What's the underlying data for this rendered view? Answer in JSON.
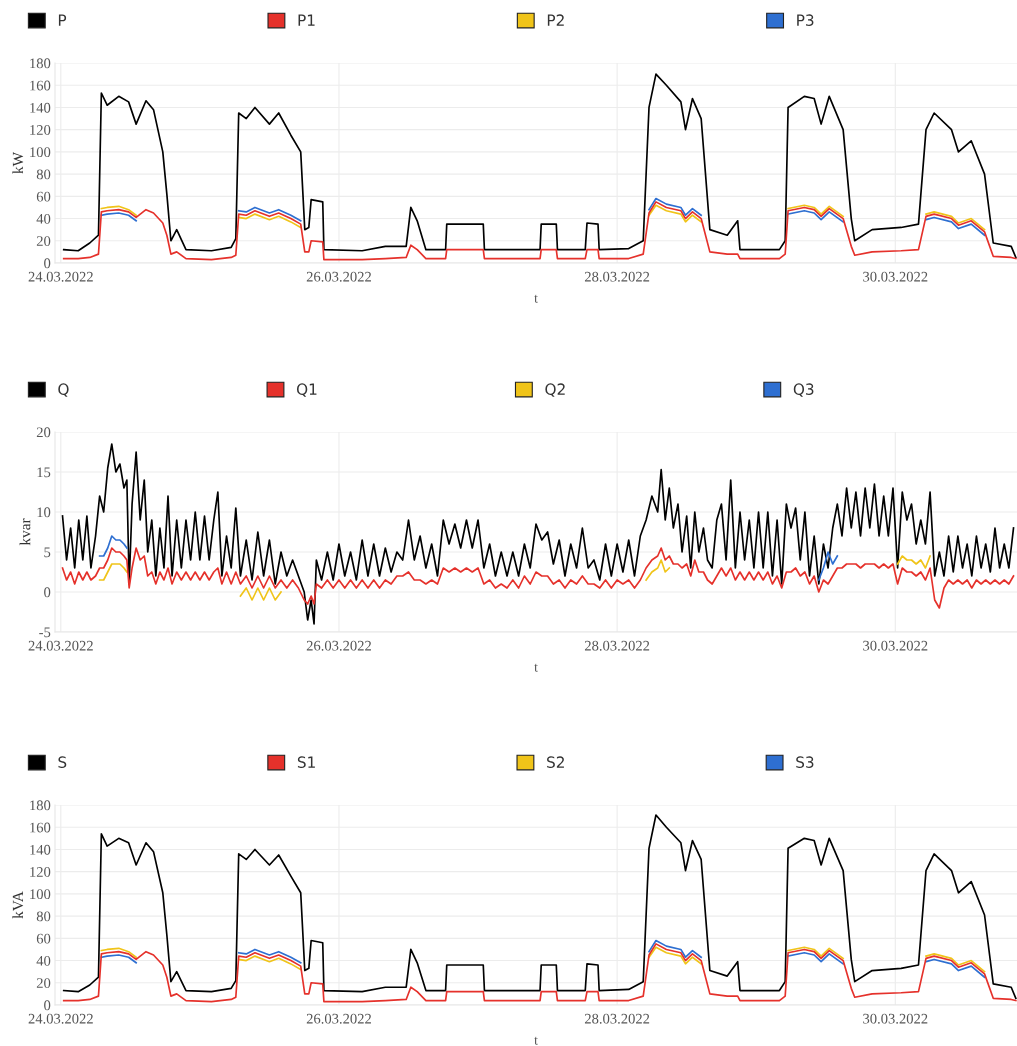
{
  "chart_data": [
    {
      "type": "line",
      "xlabel": "t",
      "ylabel": "kW",
      "legend": "top",
      "grid": true,
      "line_style": "solid",
      "xlim": [
        "2022-03-23T23:00",
        "2022-03-30T21:00"
      ],
      "ylim": [
        0,
        180
      ],
      "yticks": [
        0,
        20,
        40,
        60,
        80,
        100,
        120,
        140,
        160,
        180
      ],
      "xticks": [
        {
          "value": "2022-03-24",
          "label": "24.03.2022"
        },
        {
          "value": "2022-03-26",
          "label": "26.03.2022"
        },
        {
          "value": "2022-03-28",
          "label": "28.03.2022"
        },
        {
          "value": "2022-03-30",
          "label": "30.03.2022"
        }
      ],
      "x": [
        "2022-03-24T00:30",
        "2022-03-24T03:00",
        "2022-03-24T05:00",
        "2022-03-24T06:30",
        "2022-03-24T07:00",
        "2022-03-24T08:00",
        "2022-03-24T10:00",
        "2022-03-24T11:42",
        "2022-03-24T13:00",
        "2022-03-24T14:42",
        "2022-03-24T16:00",
        "2022-03-24T17:36",
        "2022-03-24T18:18",
        "2022-03-24T19:00",
        "2022-03-24T20:00",
        "2022-03-24T21:36",
        "2022-03-25T02:00",
        "2022-03-25T05:24",
        "2022-03-25T06:12",
        "2022-03-25T06:42",
        "2022-03-25T08:00",
        "2022-03-25T09:30",
        "2022-03-25T12:00",
        "2022-03-25T13:36",
        "2022-03-25T15:42",
        "2022-03-25T17:24",
        "2022-03-25T18:06",
        "2022-03-25T18:48",
        "2022-03-25T19:12",
        "2022-03-25T21:12",
        "2022-03-25T21:24",
        "2022-03-26T04:00",
        "2022-03-26T08:00",
        "2022-03-26T11:36",
        "2022-03-26T12:24",
        "2022-03-26T13:30",
        "2022-03-26T15:00",
        "2022-03-26T18:24",
        "2022-03-26T18:36",
        "2022-03-27T00:54",
        "2022-03-27T01:06",
        "2022-03-27T10:42",
        "2022-03-27T10:54",
        "2022-03-27T13:30",
        "2022-03-27T13:42",
        "2022-03-27T18:30",
        "2022-03-27T18:48",
        "2022-03-27T20:42",
        "2022-03-27T20:54",
        "2022-03-28T02:00",
        "2022-03-28T04:30",
        "2022-03-28T05:30",
        "2022-03-28T06:42",
        "2022-03-28T08:30",
        "2022-03-28T11:00",
        "2022-03-28T11:48",
        "2022-03-28T13:00",
        "2022-03-28T14:30",
        "2022-03-28T16:00",
        "2022-03-28T19:00",
        "2022-03-28T20:48",
        "2022-03-28T21:12",
        "2022-03-29T04:00",
        "2022-03-29T05:00",
        "2022-03-29T05:30",
        "2022-03-29T08:18",
        "2022-03-29T10:00",
        "2022-03-29T11:12",
        "2022-03-29T12:36",
        "2022-03-29T15:00",
        "2022-03-29T16:24",
        "2022-03-29T17:00",
        "2022-03-29T20:00",
        "2022-03-30T01:00",
        "2022-03-30T04:00",
        "2022-03-30T05:18",
        "2022-03-30T06:42",
        "2022-03-30T09:42",
        "2022-03-30T10:54",
        "2022-03-30T13:06",
        "2022-03-30T15:24",
        "2022-03-30T16:54",
        "2022-03-30T20:00",
        "2022-03-30T20:48"
      ],
      "series": [
        {
          "name": "P",
          "color": "#000000",
          "values": [
            12,
            11,
            18,
            25,
            153,
            142,
            150,
            145,
            125,
            146,
            138,
            100,
            62,
            20,
            30,
            12,
            11,
            14,
            22,
            135,
            130,
            140,
            125,
            135,
            115,
            100,
            30,
            32,
            57,
            55,
            12,
            11,
            15,
            15,
            50,
            38,
            12,
            12,
            35,
            35,
            12,
            12,
            35,
            35,
            12,
            12,
            36,
            35,
            12,
            13,
            20,
            140,
            170,
            160,
            145,
            120,
            148,
            130,
            30,
            25,
            38,
            12,
            12,
            20,
            140,
            150,
            148,
            125,
            150,
            120,
            40,
            20,
            30,
            32,
            35,
            120,
            135,
            120,
            100,
            110,
            80,
            18,
            15,
            5
          ]
        },
        {
          "name": "P1",
          "color": "#e5312b",
          "values": [
            4,
            4,
            5,
            8,
            46,
            47,
            48,
            46,
            41,
            48,
            45,
            36,
            25,
            8,
            10,
            4,
            3,
            5,
            7,
            44,
            43,
            47,
            42,
            45,
            40,
            35,
            10,
            10,
            20,
            19,
            3,
            3,
            4,
            5,
            16,
            12,
            4,
            4,
            12,
            12,
            4,
            4,
            12,
            12,
            4,
            4,
            12,
            12,
            4,
            4,
            8,
            45,
            55,
            50,
            47,
            40,
            46,
            40,
            10,
            8,
            8,
            4,
            4,
            8,
            47,
            50,
            48,
            42,
            49,
            40,
            15,
            7,
            10,
            11,
            12,
            42,
            44,
            40,
            34,
            38,
            28,
            6,
            5,
            4
          ]
        },
        {
          "name": "P2",
          "color": "#f0c419",
          "values": [
            null,
            null,
            null,
            null,
            49,
            50,
            51,
            48,
            43,
            null,
            null,
            null,
            null,
            null,
            null,
            null,
            null,
            null,
            null,
            41,
            40,
            44,
            39,
            42,
            37,
            32,
            null,
            null,
            null,
            null,
            null,
            null,
            null,
            null,
            null,
            null,
            null,
            null,
            null,
            null,
            null,
            null,
            null,
            null,
            null,
            null,
            null,
            null,
            null,
            null,
            null,
            43,
            52,
            47,
            44,
            37,
            43,
            37,
            null,
            null,
            null,
            null,
            null,
            null,
            49,
            52,
            50,
            44,
            51,
            42,
            null,
            null,
            null,
            null,
            null,
            44,
            46,
            42,
            36,
            40,
            30,
            null,
            null,
            null
          ]
        },
        {
          "name": "P3",
          "color": "#2e6fd1",
          "values": [
            null,
            null,
            null,
            null,
            43,
            44,
            45,
            43,
            38,
            null,
            null,
            null,
            null,
            null,
            null,
            null,
            null,
            null,
            null,
            47,
            46,
            50,
            45,
            48,
            43,
            38,
            null,
            null,
            null,
            null,
            null,
            null,
            null,
            null,
            null,
            null,
            null,
            null,
            null,
            null,
            null,
            null,
            null,
            null,
            null,
            null,
            null,
            null,
            null,
            null,
            null,
            48,
            58,
            53,
            50,
            43,
            49,
            43,
            null,
            null,
            null,
            null,
            null,
            null,
            44,
            47,
            45,
            39,
            46,
            37,
            null,
            null,
            null,
            null,
            null,
            39,
            41,
            37,
            31,
            35,
            25,
            null,
            null,
            null
          ]
        }
      ]
    },
    {
      "type": "line",
      "xlabel": "t",
      "ylabel": "kvar",
      "legend": "top",
      "grid": true,
      "line_style": "solid",
      "xlim": [
        "2022-03-23T23:00",
        "2022-03-30T21:00"
      ],
      "ylim": [
        -5,
        20
      ],
      "yticks": [
        -5,
        0,
        5,
        10,
        15,
        20
      ],
      "xticks": [
        {
          "value": "2022-03-24",
          "label": "24.03.2022"
        },
        {
          "value": "2022-03-26",
          "label": "26.03.2022"
        },
        {
          "value": "2022-03-28",
          "label": "28.03.2022"
        },
        {
          "value": "2022-03-30",
          "label": "30.03.2022"
        }
      ],
      "x": [
        "2022-03-24T00:18",
        "2022-03-24T01:00",
        "2022-03-24T01:42",
        "2022-03-24T02:24",
        "2022-03-24T03:06",
        "2022-03-24T03:48",
        "2022-03-24T04:30",
        "2022-03-24T05:12",
        "2022-03-24T06:00",
        "2022-03-24T06:42",
        "2022-03-24T07:24",
        "2022-03-24T08:06",
        "2022-03-24T08:48",
        "2022-03-24T09:30",
        "2022-03-24T10:12",
        "2022-03-24T10:54",
        "2022-03-24T11:24",
        "2022-03-24T11:48",
        "2022-03-24T12:18",
        "2022-03-24T13:00",
        "2022-03-24T13:42",
        "2022-03-24T14:24",
        "2022-03-24T15:00",
        "2022-03-24T15:42",
        "2022-03-24T16:24",
        "2022-03-24T17:06",
        "2022-03-24T17:48",
        "2022-03-24T18:30",
        "2022-03-24T19:12",
        "2022-03-24T20:00",
        "2022-03-24T20:48",
        "2022-03-24T21:36",
        "2022-03-24T22:24",
        "2022-03-24T23:12",
        "2022-03-25T00:00",
        "2022-03-25T00:48",
        "2022-03-25T01:36",
        "2022-03-25T02:24",
        "2022-03-25T03:06",
        "2022-03-25T03:48",
        "2022-03-25T04:36",
        "2022-03-25T05:24",
        "2022-03-25T06:12",
        "2022-03-25T07:00",
        "2022-03-25T08:00",
        "2022-03-25T09:00",
        "2022-03-25T10:00",
        "2022-03-25T11:00",
        "2022-03-25T12:00",
        "2022-03-25T13:00",
        "2022-03-25T14:00",
        "2022-03-25T15:00",
        "2022-03-25T16:00",
        "2022-03-25T17:00",
        "2022-03-25T18:00",
        "2022-03-25T18:36",
        "2022-03-25T19:12",
        "2022-03-25T19:42",
        "2022-03-25T20:06",
        "2022-03-25T21:00",
        "2022-03-25T22:00",
        "2022-03-25T23:00",
        "2022-03-26T00:00",
        "2022-03-26T01:00",
        "2022-03-26T02:00",
        "2022-03-26T03:00",
        "2022-03-26T04:00",
        "2022-03-26T05:00",
        "2022-03-26T06:00",
        "2022-03-26T07:00",
        "2022-03-26T08:00",
        "2022-03-26T09:00",
        "2022-03-26T10:00",
        "2022-03-26T11:00",
        "2022-03-26T12:00",
        "2022-03-26T13:00",
        "2022-03-26T14:00",
        "2022-03-26T15:00",
        "2022-03-26T16:00",
        "2022-03-26T17:00",
        "2022-03-26T18:00",
        "2022-03-26T19:00",
        "2022-03-26T20:00",
        "2022-03-26T21:00",
        "2022-03-26T22:00",
        "2022-03-26T23:00",
        "2022-03-27T00:00",
        "2022-03-27T01:00",
        "2022-03-27T02:00",
        "2022-03-27T03:00",
        "2022-03-27T04:00",
        "2022-03-27T05:00",
        "2022-03-27T06:00",
        "2022-03-27T07:00",
        "2022-03-27T08:00",
        "2022-03-27T09:00",
        "2022-03-27T10:00",
        "2022-03-27T11:00",
        "2022-03-27T12:00",
        "2022-03-27T13:00",
        "2022-03-27T14:00",
        "2022-03-27T15:00",
        "2022-03-27T16:00",
        "2022-03-27T17:00",
        "2022-03-27T18:00",
        "2022-03-27T19:00",
        "2022-03-27T20:00",
        "2022-03-27T21:00",
        "2022-03-27T22:00",
        "2022-03-27T23:00",
        "2022-03-28T00:00",
        "2022-03-28T01:00",
        "2022-03-28T02:00",
        "2022-03-28T03:00",
        "2022-03-28T04:00",
        "2022-03-28T05:00",
        "2022-03-28T06:00",
        "2022-03-28T07:00",
        "2022-03-28T07:36",
        "2022-03-28T08:18",
        "2022-03-28T09:00",
        "2022-03-28T09:42",
        "2022-03-28T10:30",
        "2022-03-28T11:12",
        "2022-03-28T12:00",
        "2022-03-28T12:42",
        "2022-03-28T13:24",
        "2022-03-28T14:06",
        "2022-03-28T14:54",
        "2022-03-28T15:36",
        "2022-03-28T16:24",
        "2022-03-28T17:12",
        "2022-03-28T18:00",
        "2022-03-28T18:48",
        "2022-03-28T19:36",
        "2022-03-28T20:24",
        "2022-03-28T21:12",
        "2022-03-28T22:00",
        "2022-03-28T22:48",
        "2022-03-28T23:36",
        "2022-03-29T00:24",
        "2022-03-29T01:12",
        "2022-03-29T02:00",
        "2022-03-29T02:48",
        "2022-03-29T03:36",
        "2022-03-29T04:24",
        "2022-03-29T05:12",
        "2022-03-29T06:00",
        "2022-03-29T06:48",
        "2022-03-29T07:36",
        "2022-03-29T08:24",
        "2022-03-29T09:12",
        "2022-03-29T10:00",
        "2022-03-29T10:48",
        "2022-03-29T11:36",
        "2022-03-29T12:24",
        "2022-03-29T13:12",
        "2022-03-29T14:00",
        "2022-03-29T14:48",
        "2022-03-29T15:36",
        "2022-03-29T16:24",
        "2022-03-29T17:12",
        "2022-03-29T18:00",
        "2022-03-29T18:48",
        "2022-03-29T19:36",
        "2022-03-29T20:24",
        "2022-03-29T21:12",
        "2022-03-29T22:00",
        "2022-03-29T22:48",
        "2022-03-29T23:36",
        "2022-03-30T00:24",
        "2022-03-30T01:12",
        "2022-03-30T02:00",
        "2022-03-30T02:48",
        "2022-03-30T03:36",
        "2022-03-30T04:24",
        "2022-03-30T05:12",
        "2022-03-30T06:00",
        "2022-03-30T06:48",
        "2022-03-30T07:36",
        "2022-03-30T08:24",
        "2022-03-30T09:12",
        "2022-03-30T10:00",
        "2022-03-30T10:48",
        "2022-03-30T11:36",
        "2022-03-30T12:24",
        "2022-03-30T13:12",
        "2022-03-30T14:00",
        "2022-03-30T14:48",
        "2022-03-30T15:36",
        "2022-03-30T16:24",
        "2022-03-30T17:12",
        "2022-03-30T18:00",
        "2022-03-30T18:48",
        "2022-03-30T19:36",
        "2022-03-30T20:24"
      ],
      "series": [
        {
          "name": "Q",
          "color": "#000000",
          "values": [
            9.5,
            4,
            8,
            3,
            9,
            4,
            9.5,
            3,
            7,
            12,
            10,
            15.5,
            18.5,
            15,
            16,
            13,
            14,
            1,
            11,
            17.5,
            9,
            14,
            5,
            9,
            2,
            8,
            3,
            12,
            2,
            9,
            3,
            9,
            4,
            10,
            4,
            9.5,
            4,
            9,
            12.5,
            2,
            7,
            3,
            10.5,
            2,
            6.5,
            1.5,
            7.5,
            2,
            6.5,
            1,
            5,
            2,
            4,
            2,
            0,
            -3.5,
            -1,
            -4,
            4,
            1.5,
            5,
            1.5,
            6,
            2,
            5,
            1.5,
            6.5,
            2,
            6,
            2,
            5.5,
            2.5,
            5,
            4,
            9,
            4,
            7,
            3,
            6,
            2,
            9,
            6,
            8.5,
            5.5,
            9,
            5.5,
            9,
            3,
            6,
            2,
            5,
            2,
            5,
            2,
            6,
            3,
            8.5,
            6.5,
            7.5,
            3.5,
            6.5,
            2,
            6,
            3,
            8,
            3,
            4,
            1.5,
            6,
            2,
            6,
            2.5,
            6.5,
            2,
            7,
            9,
            12,
            10,
            15.3,
            9,
            13,
            8,
            11,
            5,
            9.5,
            3,
            10,
            5,
            8,
            4,
            3,
            9,
            11,
            4,
            14,
            3,
            10,
            4,
            9,
            3,
            10,
            3,
            10,
            2,
            9,
            1,
            11,
            8,
            10.5,
            4,
            10,
            2,
            7,
            1,
            6,
            3,
            8,
            11,
            7,
            13,
            8,
            12.5,
            7,
            13,
            8,
            13.5,
            7,
            12,
            7,
            13,
            3,
            12.5,
            9,
            11,
            6,
            9,
            6,
            12.5,
            2,
            5,
            2,
            7,
            2.5,
            7,
            3,
            6,
            2,
            7,
            3,
            6,
            2.5,
            8,
            3,
            6,
            3,
            8
          ]
        },
        {
          "name": "Q1",
          "color": "#e5312b",
          "values": [
            3,
            1.5,
            2.5,
            1,
            2.5,
            1.5,
            2.5,
            1.5,
            2,
            3,
            3,
            4,
            5.5,
            5,
            5,
            4.5,
            4,
            0.5,
            3,
            5.5,
            4,
            4.5,
            2,
            2.5,
            1,
            2.5,
            1.5,
            3,
            1,
            2.5,
            1.5,
            2.5,
            1.5,
            2.5,
            1.5,
            2.5,
            1.5,
            2.5,
            3,
            1,
            2.5,
            1,
            2.5,
            1,
            2,
            0.5,
            2,
            0.5,
            2,
            0.5,
            1.5,
            0.5,
            1.5,
            0.5,
            -1,
            -1.5,
            -0.5,
            -1.5,
            1,
            0.5,
            1.5,
            0.5,
            1.5,
            0.5,
            1.5,
            0.5,
            1.5,
            0.5,
            1.5,
            0.5,
            1.5,
            1,
            2,
            2,
            2.5,
            1.5,
            1.5,
            1,
            1.5,
            1,
            3,
            2.5,
            3,
            2.5,
            3,
            2.5,
            3,
            1,
            1.5,
            0.5,
            1,
            0.5,
            1.5,
            0.5,
            2,
            1,
            2.5,
            2,
            2,
            1,
            1.5,
            0.5,
            1.5,
            1,
            2,
            1,
            1,
            0.5,
            1.5,
            0.5,
            1.5,
            1,
            1.5,
            0.5,
            1.5,
            3,
            4,
            4.5,
            5.5,
            4,
            4.5,
            3.5,
            3.5,
            3,
            3.5,
            2,
            4,
            2.5,
            2.5,
            1.5,
            1,
            2,
            3,
            2,
            3,
            1.5,
            2.5,
            1.5,
            2.5,
            1.5,
            2.5,
            1.5,
            2.5,
            1,
            2,
            0.5,
            2.5,
            2.5,
            3,
            2,
            2.5,
            1,
            2,
            0,
            1.5,
            1,
            2,
            3,
            3,
            3.5,
            3.5,
            3.5,
            3,
            3.5,
            3.5,
            3.5,
            3,
            3.5,
            3,
            3.5,
            1,
            3,
            2.5,
            2.5,
            2,
            2.5,
            1.5,
            3,
            -1,
            -2,
            0.5,
            1.5,
            1,
            1.5,
            1,
            1.5,
            0.5,
            1.5,
            1,
            1.5,
            1,
            1.5,
            1,
            1.5,
            1,
            2
          ]
        },
        {
          "name": "Q2",
          "color": "#f0c419",
          "x": [
            "2022-03-24T06:42",
            "2022-03-24T07:24",
            "2022-03-24T08:06",
            "2022-03-24T08:48",
            "2022-03-24T09:30",
            "2022-03-24T10:12",
            "2022-03-24T10:54",
            "2022-03-24T11:24",
            "2022-03-24T12:00",
            "2022-03-25T07:00",
            "2022-03-25T08:00",
            "2022-03-25T09:00",
            "2022-03-25T10:00",
            "2022-03-25T11:00",
            "2022-03-25T12:00",
            "2022-03-25T13:00",
            "2022-03-25T14:00",
            "2022-03-25T15:00",
            "2022-03-28T05:00",
            "2022-03-28T06:00",
            "2022-03-28T07:00",
            "2022-03-28T07:36",
            "2022-03-28T08:18",
            "2022-03-28T09:00",
            "2022-03-28T09:30",
            "2022-03-30T00:24",
            "2022-03-30T01:12",
            "2022-03-30T02:00",
            "2022-03-30T02:48",
            "2022-03-30T03:36",
            "2022-03-30T04:24",
            "2022-03-30T05:12",
            "2022-03-30T06:00"
          ],
          "values": [
            1.5,
            1.5,
            2.5,
            3.5,
            3.5,
            3.5,
            3,
            2.5,
            null,
            -0.5,
            0.5,
            -1,
            0.5,
            -1,
            0.5,
            -1,
            0,
            null,
            1.5,
            2.5,
            3,
            4,
            2.5,
            3,
            null,
            3.5,
            4.5,
            4,
            4,
            3.5,
            4,
            3,
            4.5
          ]
        },
        {
          "name": "Q3",
          "color": "#2e6fd1",
          "x": [
            "2022-03-24T06:42",
            "2022-03-24T07:24",
            "2022-03-24T08:06",
            "2022-03-24T08:48",
            "2022-03-24T09:30",
            "2022-03-24T10:12",
            "2022-03-24T10:54",
            "2022-03-24T11:24",
            "2022-03-24T12:00",
            "2022-03-29T10:48",
            "2022-03-29T11:36",
            "2022-03-29T12:24",
            "2022-03-29T13:12",
            "2022-03-29T14:00"
          ],
          "values": [
            4.5,
            4.5,
            5.5,
            7,
            6.5,
            6.5,
            6,
            5.5,
            null,
            1.5,
            3,
            5,
            3.5,
            4.5
          ]
        }
      ]
    },
    {
      "type": "line",
      "xlabel": "t",
      "ylabel": "kVA",
      "legend": "top",
      "grid": true,
      "line_style": "solid",
      "xlim": [
        "2022-03-23T23:00",
        "2022-03-30T21:00"
      ],
      "ylim": [
        0,
        180
      ],
      "yticks": [
        0,
        20,
        40,
        60,
        80,
        100,
        120,
        140,
        160,
        180
      ],
      "xticks": [
        {
          "value": "2022-03-24",
          "label": "24.03.2022"
        },
        {
          "value": "2022-03-26",
          "label": "26.03.2022"
        },
        {
          "value": "2022-03-28",
          "label": "28.03.2022"
        },
        {
          "value": "2022-03-30",
          "label": "30.03.2022"
        }
      ],
      "x": [
        "2022-03-24T00:30",
        "2022-03-24T03:00",
        "2022-03-24T05:00",
        "2022-03-24T06:30",
        "2022-03-24T07:00",
        "2022-03-24T08:00",
        "2022-03-24T10:00",
        "2022-03-24T11:42",
        "2022-03-24T13:00",
        "2022-03-24T14:42",
        "2022-03-24T16:00",
        "2022-03-24T17:36",
        "2022-03-24T18:18",
        "2022-03-24T19:00",
        "2022-03-24T20:00",
        "2022-03-24T21:36",
        "2022-03-25T02:00",
        "2022-03-25T05:24",
        "2022-03-25T06:12",
        "2022-03-25T06:42",
        "2022-03-25T08:00",
        "2022-03-25T09:30",
        "2022-03-25T12:00",
        "2022-03-25T13:36",
        "2022-03-25T15:42",
        "2022-03-25T17:24",
        "2022-03-25T18:06",
        "2022-03-25T18:48",
        "2022-03-25T19:12",
        "2022-03-25T21:12",
        "2022-03-25T21:24",
        "2022-03-26T04:00",
        "2022-03-26T08:00",
        "2022-03-26T11:36",
        "2022-03-26T12:24",
        "2022-03-26T13:30",
        "2022-03-26T15:00",
        "2022-03-26T18:24",
        "2022-03-26T18:36",
        "2022-03-27T00:54",
        "2022-03-27T01:06",
        "2022-03-27T10:42",
        "2022-03-27T10:54",
        "2022-03-27T13:30",
        "2022-03-27T13:42",
        "2022-03-27T18:30",
        "2022-03-27T18:48",
        "2022-03-27T20:42",
        "2022-03-27T20:54",
        "2022-03-28T02:00",
        "2022-03-28T04:30",
        "2022-03-28T05:30",
        "2022-03-28T06:42",
        "2022-03-28T08:30",
        "2022-03-28T11:00",
        "2022-03-28T11:48",
        "2022-03-28T13:00",
        "2022-03-28T14:30",
        "2022-03-28T16:00",
        "2022-03-28T19:00",
        "2022-03-28T20:48",
        "2022-03-28T21:12",
        "2022-03-29T04:00",
        "2022-03-29T05:00",
        "2022-03-29T05:30",
        "2022-03-29T08:18",
        "2022-03-29T10:00",
        "2022-03-29T11:12",
        "2022-03-29T12:36",
        "2022-03-29T15:00",
        "2022-03-29T16:24",
        "2022-03-29T17:00",
        "2022-03-29T20:00",
        "2022-03-30T01:00",
        "2022-03-30T04:00",
        "2022-03-30T05:18",
        "2022-03-30T06:42",
        "2022-03-30T09:42",
        "2022-03-30T10:54",
        "2022-03-30T13:06",
        "2022-03-30T15:24",
        "2022-03-30T16:54",
        "2022-03-30T20:00",
        "2022-03-30T20:48"
      ],
      "series": [
        {
          "name": "S",
          "color": "#000000",
          "values": [
            13,
            12,
            18,
            25,
            154,
            143,
            150,
            146,
            126,
            146,
            138,
            101,
            63,
            21,
            30,
            13,
            12,
            15,
            22,
            136,
            131,
            140,
            126,
            135,
            116,
            101,
            31,
            33,
            58,
            56,
            13,
            12,
            16,
            16,
            50,
            38,
            13,
            13,
            36,
            36,
            13,
            13,
            36,
            36,
            13,
            13,
            37,
            36,
            13,
            14,
            21,
            141,
            171,
            160,
            146,
            121,
            148,
            131,
            31,
            26,
            39,
            13,
            13,
            21,
            141,
            150,
            148,
            126,
            150,
            121,
            41,
            21,
            31,
            33,
            36,
            121,
            136,
            121,
            101,
            111,
            81,
            19,
            16,
            6
          ]
        },
        {
          "name": "S1",
          "color": "#e5312b",
          "values": [
            4,
            4,
            5,
            8,
            46,
            47,
            48,
            46,
            41,
            48,
            45,
            36,
            25,
            8,
            10,
            4,
            3,
            5,
            7,
            44,
            43,
            47,
            42,
            45,
            40,
            35,
            10,
            10,
            20,
            19,
            3,
            3,
            4,
            5,
            16,
            12,
            4,
            4,
            12,
            12,
            4,
            4,
            12,
            12,
            4,
            4,
            12,
            12,
            4,
            4,
            8,
            45,
            55,
            50,
            47,
            40,
            46,
            40,
            10,
            8,
            8,
            4,
            4,
            8,
            47,
            50,
            48,
            42,
            49,
            40,
            15,
            7,
            10,
            11,
            12,
            42,
            44,
            40,
            34,
            38,
            28,
            6,
            5,
            4
          ]
        },
        {
          "name": "S2",
          "color": "#f0c419",
          "values": [
            null,
            null,
            null,
            null,
            49,
            50,
            51,
            48,
            43,
            null,
            null,
            null,
            null,
            null,
            null,
            null,
            null,
            null,
            null,
            41,
            40,
            44,
            39,
            42,
            37,
            32,
            null,
            null,
            null,
            null,
            null,
            null,
            null,
            null,
            null,
            null,
            null,
            null,
            null,
            null,
            null,
            null,
            null,
            null,
            null,
            null,
            null,
            null,
            null,
            null,
            null,
            43,
            52,
            47,
            44,
            37,
            43,
            37,
            null,
            null,
            null,
            null,
            null,
            null,
            49,
            52,
            50,
            44,
            51,
            42,
            null,
            null,
            null,
            null,
            null,
            44,
            46,
            42,
            36,
            40,
            30,
            null,
            null,
            null
          ]
        },
        {
          "name": "S3",
          "color": "#2e6fd1",
          "values": [
            null,
            null,
            null,
            null,
            43,
            44,
            45,
            43,
            38,
            null,
            null,
            null,
            null,
            null,
            null,
            null,
            null,
            null,
            null,
            47,
            46,
            50,
            45,
            48,
            43,
            38,
            null,
            null,
            null,
            null,
            null,
            null,
            null,
            null,
            null,
            null,
            null,
            null,
            null,
            null,
            null,
            null,
            null,
            null,
            null,
            null,
            null,
            null,
            null,
            null,
            null,
            48,
            58,
            53,
            50,
            43,
            49,
            43,
            null,
            null,
            null,
            null,
            null,
            null,
            44,
            47,
            45,
            39,
            46,
            37,
            null,
            null,
            null,
            null,
            null,
            39,
            41,
            37,
            31,
            35,
            25,
            null,
            null,
            null
          ]
        }
      ]
    }
  ]
}
